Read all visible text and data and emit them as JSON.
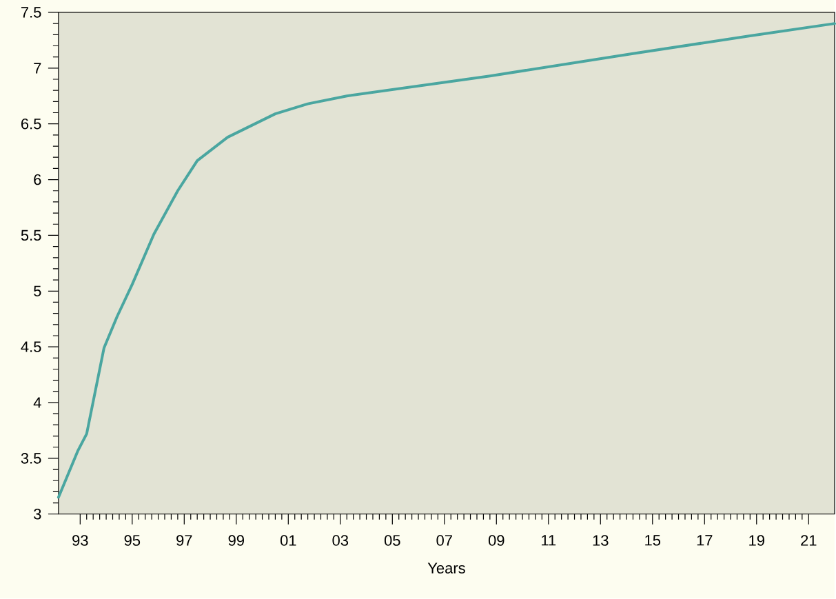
{
  "chart_data": {
    "type": "line",
    "xlabel": "Years",
    "x": [
      "1992-09",
      "1993-06",
      "1993-10",
      "1994-06",
      "1994-12",
      "1995-07",
      "1996-05",
      "1997-04",
      "1998-01",
      "1999-03",
      "2001-01",
      "2002-04",
      "2003-10",
      "2009-04",
      "2014-10",
      "2019-04",
      "2022-07"
    ],
    "values": [
      3.15,
      3.57,
      3.72,
      4.49,
      4.77,
      5.06,
      5.51,
      5.9,
      6.17,
      6.38,
      6.59,
      6.68,
      6.75,
      6.93,
      7.13,
      7.29,
      7.4
    ],
    "color": "#4aa6a0",
    "marker": "none",
    "line_style": "solid",
    "grid": false,
    "xlim": [
      "1992-09",
      "2022-07"
    ],
    "ylim": [
      3,
      7.5
    ],
    "xticks": [
      {
        "value": "1993-07",
        "label": "93"
      },
      {
        "value": "1995-07",
        "label": "95"
      },
      {
        "value": "1997-07",
        "label": "97"
      },
      {
        "value": "1999-07",
        "label": "99"
      },
      {
        "value": "2001-07",
        "label": "01"
      },
      {
        "value": "2003-07",
        "label": "03"
      },
      {
        "value": "2005-07",
        "label": "05"
      },
      {
        "value": "2007-07",
        "label": "07"
      },
      {
        "value": "2009-07",
        "label": "09"
      },
      {
        "value": "2011-07",
        "label": "11"
      },
      {
        "value": "2013-07",
        "label": "13"
      },
      {
        "value": "2015-07",
        "label": "15"
      },
      {
        "value": "2017-07",
        "label": "17"
      },
      {
        "value": "2019-07",
        "label": "19"
      },
      {
        "value": "2021-07",
        "label": "21"
      }
    ],
    "yticks": [
      3,
      3.5,
      4,
      4.5,
      5,
      5.5,
      6,
      6.5,
      7,
      7.5
    ]
  }
}
